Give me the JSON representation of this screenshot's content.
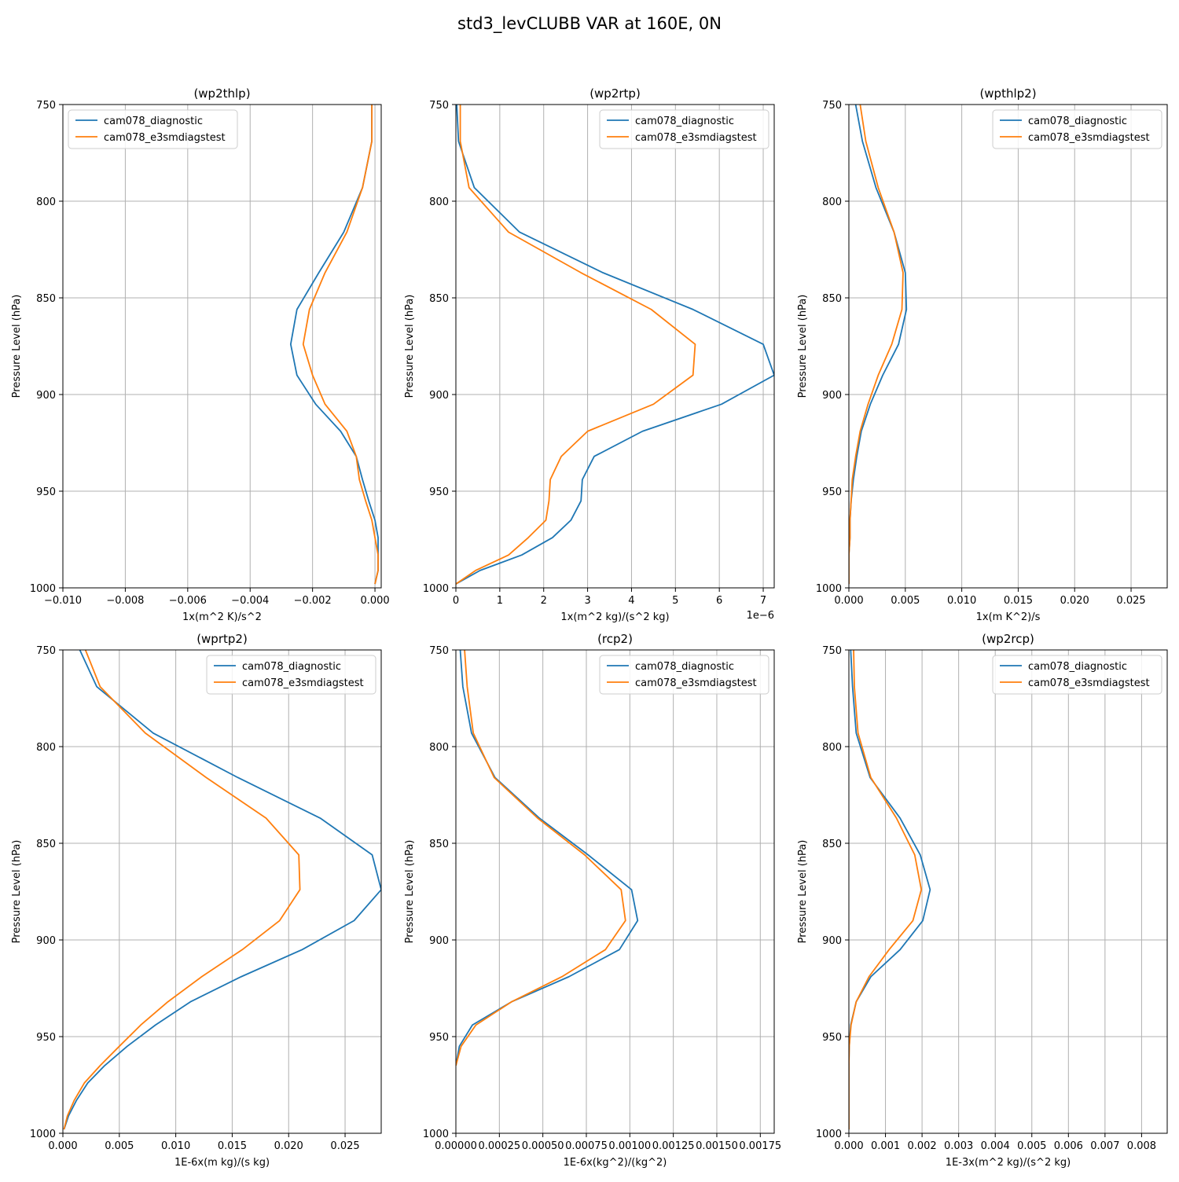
{
  "figure": {
    "suptitle": "std3_levCLUBB VAR at 160E, 0N",
    "colors": {
      "diag": "#1f77b4",
      "test": "#ff7f0e",
      "grid": "#b0b0b0",
      "axis": "#000000"
    },
    "legend_labels": [
      "cam078_diagnostic",
      "cam078_e3smdiagstest"
    ]
  },
  "chart_data": [
    {
      "type": "line",
      "title": "(wp2thlp)",
      "xlabel": "1x(m^2 K)/s^2",
      "ylabel": "Pressure Level (hPa)",
      "offset_label": "",
      "xlim": [
        -0.01,
        0.0002
      ],
      "ylim": [
        1000,
        750
      ],
      "xticks": [
        -0.01,
        -0.008,
        -0.006,
        -0.004,
        -0.002,
        0.0
      ],
      "xtick_labels": [
        "−0.010",
        "−0.008",
        "−0.006",
        "−0.004",
        "−0.002",
        "0.000"
      ],
      "yticks": [
        750,
        800,
        850,
        900,
        950,
        1000
      ],
      "ytick_labels": [
        "750",
        "800",
        "850",
        "900",
        "950",
        "1000"
      ],
      "legend_position": "upper-left",
      "grid": true,
      "levels": [
        750,
        769,
        793,
        816,
        837,
        856,
        874,
        890,
        905,
        919,
        932,
        944,
        955,
        965,
        974,
        983,
        991,
        998
      ],
      "series": [
        {
          "name": "cam078_diagnostic",
          "color": "#1f77b4",
          "values": [
            -0.0001,
            -0.0001,
            -0.0004,
            -0.001,
            -0.0018,
            -0.0025,
            -0.0027,
            -0.0025,
            -0.0019,
            -0.0011,
            -0.0006,
            -0.0004,
            -0.0002,
            0.0,
            0.0001,
            0.0001,
            0.0001,
            0.0
          ]
        },
        {
          "name": "cam078_e3smdiagstest",
          "color": "#ff7f0e",
          "values": [
            -0.0001,
            -0.0001,
            -0.0004,
            -0.0009,
            -0.0016,
            -0.0021,
            -0.0023,
            -0.002,
            -0.0016,
            -0.0009,
            -0.0006,
            -0.0005,
            -0.0003,
            -0.0001,
            0.0,
            0.0001,
            0.0001,
            0.0
          ]
        }
      ]
    },
    {
      "type": "line",
      "title": "(wp2rtp)",
      "xlabel": "1x(m^2 kg)/(s^2 kg)",
      "ylabel": "Pressure Level (hPa)",
      "offset_label": "1e−6",
      "xlim": [
        0,
        7.25
      ],
      "ylim": [
        1000,
        750
      ],
      "xticks": [
        0,
        1,
        2,
        3,
        4,
        5,
        6,
        7
      ],
      "xtick_labels": [
        "0",
        "1",
        "2",
        "3",
        "4",
        "5",
        "6",
        "7"
      ],
      "yticks": [
        750,
        800,
        850,
        900,
        950,
        1000
      ],
      "ytick_labels": [
        "750",
        "800",
        "850",
        "900",
        "950",
        "1000"
      ],
      "legend_position": "upper-right",
      "grid": true,
      "levels": [
        750,
        769,
        793,
        816,
        837,
        856,
        874,
        890,
        905,
        919,
        932,
        944,
        955,
        965,
        974,
        983,
        991,
        998
      ],
      "series": [
        {
          "name": "cam078_diagnostic",
          "color": "#1f77b4",
          "values": [
            0.02,
            0.06,
            0.42,
            1.45,
            3.35,
            5.4,
            7.0,
            7.25,
            6.05,
            4.25,
            3.15,
            2.88,
            2.85,
            2.62,
            2.2,
            1.5,
            0.55,
            0.0
          ]
        },
        {
          "name": "cam078_e3smdiagstest",
          "color": "#ff7f0e",
          "values": [
            0.1,
            0.1,
            0.3,
            1.2,
            2.85,
            4.45,
            5.45,
            5.4,
            4.5,
            3.0,
            2.4,
            2.15,
            2.12,
            2.05,
            1.65,
            1.2,
            0.45,
            0.0
          ]
        }
      ]
    },
    {
      "type": "line",
      "title": "(wpthlp2)",
      "xlabel": "1x(m K^2)/s",
      "ylabel": "Pressure Level (hPa)",
      "offset_label": "",
      "xlim": [
        0,
        0.0282
      ],
      "ylim": [
        1000,
        750
      ],
      "xticks": [
        0.0,
        0.005,
        0.01,
        0.015,
        0.02,
        0.025
      ],
      "xtick_labels": [
        "0.000",
        "0.005",
        "0.010",
        "0.015",
        "0.020",
        "0.025"
      ],
      "yticks": [
        750,
        800,
        850,
        900,
        950,
        1000
      ],
      "ytick_labels": [
        "750",
        "800",
        "850",
        "900",
        "950",
        "1000"
      ],
      "legend_position": "upper-right",
      "grid": true,
      "levels": [
        750,
        769,
        793,
        816,
        837,
        856,
        874,
        890,
        905,
        919,
        932,
        944,
        955,
        965,
        974,
        983,
        991,
        998
      ],
      "series": [
        {
          "name": "cam078_diagnostic",
          "color": "#1f77b4",
          "values": [
            0.0006,
            0.0012,
            0.0024,
            0.004,
            0.005,
            0.0051,
            0.0044,
            0.003,
            0.0019,
            0.0011,
            0.0007,
            0.0004,
            0.0002,
            0.0001,
            0.0001,
            0.0,
            0.0,
            0.0
          ]
        },
        {
          "name": "cam078_e3smdiagstest",
          "color": "#ff7f0e",
          "values": [
            0.001,
            0.0015,
            0.0026,
            0.004,
            0.0048,
            0.0047,
            0.0038,
            0.0026,
            0.0017,
            0.001,
            0.0006,
            0.0003,
            0.0002,
            0.0001,
            0.0001,
            0.0,
            0.0,
            0.0
          ]
        }
      ]
    },
    {
      "type": "line",
      "title": "(wprtp2)",
      "xlabel": "1E-6x(m kg)/(s kg)",
      "ylabel": "Pressure Level (hPa)",
      "offset_label": "",
      "xlim": [
        0,
        0.0282
      ],
      "ylim": [
        1000,
        750
      ],
      "xticks": [
        0.0,
        0.005,
        0.01,
        0.015,
        0.02,
        0.025
      ],
      "xtick_labels": [
        "0.000",
        "0.005",
        "0.010",
        "0.015",
        "0.020",
        "0.025"
      ],
      "yticks": [
        750,
        800,
        850,
        900,
        950,
        1000
      ],
      "ytick_labels": [
        "750",
        "800",
        "850",
        "900",
        "950",
        "1000"
      ],
      "legend_position": "upper-right",
      "grid": true,
      "levels": [
        750,
        769,
        793,
        816,
        837,
        856,
        874,
        890,
        905,
        919,
        932,
        944,
        955,
        965,
        974,
        983,
        991,
        998
      ],
      "series": [
        {
          "name": "cam078_diagnostic",
          "color": "#1f77b4",
          "values": [
            0.0015,
            0.003,
            0.008,
            0.0155,
            0.0228,
            0.0274,
            0.0282,
            0.0258,
            0.0212,
            0.0158,
            0.0113,
            0.0082,
            0.0057,
            0.0037,
            0.0022,
            0.0012,
            0.0005,
            0.0001
          ]
        },
        {
          "name": "cam078_e3smdiagstest",
          "color": "#ff7f0e",
          "values": [
            0.002,
            0.0033,
            0.0073,
            0.0127,
            0.018,
            0.0209,
            0.021,
            0.0192,
            0.0159,
            0.0123,
            0.0093,
            0.0069,
            0.005,
            0.0033,
            0.0019,
            0.001,
            0.0004,
            0.0001
          ]
        }
      ]
    },
    {
      "type": "line",
      "title": "(rcp2)",
      "xlabel": "1E-6x(kg^2)/(kg^2)",
      "ylabel": "Pressure Level (hPa)",
      "offset_label": "",
      "xlim": [
        0,
        0.00183
      ],
      "ylim": [
        1000,
        750
      ],
      "xticks": [
        0.0,
        0.00025,
        0.0005,
        0.00075,
        0.001,
        0.00125,
        0.0015,
        0.00175
      ],
      "xtick_labels": [
        "0.00000",
        "0.00025",
        "0.00050",
        "0.00075",
        "0.00100",
        "0.00125",
        "0.00150",
        "0.00175"
      ],
      "yticks": [
        750,
        800,
        850,
        900,
        950,
        1000
      ],
      "ytick_labels": [
        "750",
        "800",
        "850",
        "900",
        "950",
        "1000"
      ],
      "legend_position": "upper-right",
      "grid": true,
      "levels": [
        750,
        769,
        793,
        816,
        837,
        856,
        874,
        890,
        905,
        919,
        932,
        944,
        955,
        965
      ],
      "series": [
        {
          "name": "cam078_diagnostic",
          "color": "#1f77b4",
          "values": [
            2.5e-05,
            4e-05,
            9e-05,
            0.000225,
            0.00048,
            0.00076,
            0.00101,
            0.001045,
            0.00094,
            0.00065,
            0.00032,
            9.5e-05,
            2e-05,
            0.0
          ]
        },
        {
          "name": "cam078_e3smdiagstest",
          "color": "#ff7f0e",
          "values": [
            5e-05,
            6.5e-05,
            0.0001,
            0.00022,
            0.00047,
            0.00074,
            0.00095,
            0.000975,
            0.00086,
            0.00061,
            0.00032,
            0.000115,
            3e-05,
            0.0
          ]
        }
      ]
    },
    {
      "type": "line",
      "title": "(wp2rcp)",
      "xlabel": "1E-3x(m^2 kg)/(s^2 kg)",
      "ylabel": "Pressure Level (hPa)",
      "offset_label": "",
      "xlim": [
        0,
        0.0087
      ],
      "ylim": [
        1000,
        750
      ],
      "xticks": [
        0.0,
        0.001,
        0.002,
        0.003,
        0.004,
        0.005,
        0.006,
        0.007,
        0.008
      ],
      "xtick_labels": [
        "0.000",
        "0.001",
        "0.002",
        "0.003",
        "0.004",
        "0.005",
        "0.006",
        "0.007",
        "0.008"
      ],
      "yticks": [
        750,
        800,
        850,
        900,
        950,
        1000
      ],
      "ytick_labels": [
        "750",
        "800",
        "850",
        "900",
        "950",
        "1000"
      ],
      "legend_position": "upper-right",
      "grid": true,
      "levels": [
        750,
        769,
        793,
        816,
        837,
        856,
        874,
        890,
        905,
        919,
        932,
        944,
        955,
        965,
        974,
        983,
        991,
        998
      ],
      "series": [
        {
          "name": "cam078_diagnostic",
          "color": "#1f77b4",
          "values": [
            5e-05,
            0.0001,
            0.0002,
            0.00058,
            0.0014,
            0.00195,
            0.00222,
            0.00202,
            0.0014,
            0.0006,
            0.0002,
            5e-05,
            1e-05,
            0.0,
            0.0,
            0.0,
            0.0,
            0.0
          ]
        },
        {
          "name": "cam078_e3smdiagstest",
          "color": "#ff7f0e",
          "values": [
            0.00013,
            0.00015,
            0.00025,
            0.0006,
            0.0013,
            0.0018,
            0.00198,
            0.00175,
            0.0011,
            0.00055,
            0.0002,
            6e-05,
            1e-05,
            0.0,
            0.0,
            0.0,
            0.0,
            0.0
          ]
        }
      ]
    }
  ]
}
